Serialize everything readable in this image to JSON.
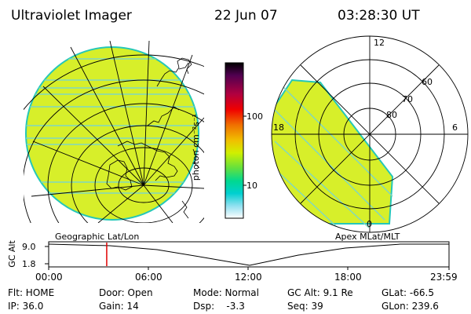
{
  "header": {
    "title": "Ultraviolet Imager",
    "date": "22 Jun 07",
    "time": "03:28:30 UT"
  },
  "left_panel": {
    "caption": "Geographic Lat/Lon",
    "icon": "globe-icon"
  },
  "right_panel": {
    "caption": "Apex MLat/MLT",
    "mlt_labels": [
      "12",
      "18",
      "6",
      "0"
    ],
    "mlat_labels": [
      "60",
      "70",
      "80"
    ]
  },
  "colorbar": {
    "unit_label": "photon cm⁻²s⁻¹",
    "tick_labels": [
      "100",
      "10"
    ],
    "scale": "log",
    "colors": [
      "#000000",
      "#400040",
      "#800060",
      "#c00030",
      "#f00000",
      "#f06000",
      "#f0a000",
      "#f0e000",
      "#c0f000",
      "#60e040",
      "#00e090",
      "#00d0d0",
      "#80e0f0",
      "#d0f0f8",
      "#ffffff"
    ]
  },
  "timeline": {
    "y_label": "GC Alt",
    "y_ticks": [
      "9.0",
      "1.8"
    ],
    "x_ticks": [
      "00:00",
      "06:00",
      "12:00",
      "18:00",
      "23:59"
    ],
    "marker_time": "03:28",
    "marker_fraction": 0.145,
    "marker_color": "#e00000"
  },
  "status": {
    "row1": [
      {
        "key": "flt",
        "text": "Flt: HOME"
      },
      {
        "key": "door",
        "text": "Door: Open"
      },
      {
        "key": "mode",
        "text": "Mode: Normal"
      },
      {
        "key": "gcalt",
        "text": "GC Alt: 9.1 Re"
      },
      {
        "key": "glat",
        "text": "GLat: -66.5"
      }
    ],
    "row2": [
      {
        "key": "ip",
        "text": "IP: 36.0"
      },
      {
        "key": "gain",
        "text": "Gain: 14"
      },
      {
        "key": "dsp",
        "text": "Dsp:    -3.3"
      },
      {
        "key": "seq",
        "text": "Seq: 39"
      },
      {
        "key": "glon",
        "text": "GLon: 239.6"
      }
    ]
  },
  "colors": {
    "image_fill": "#d7ef2a",
    "image_edge": "#25c7b8",
    "stripe": "#7fd7c2",
    "grid": "#000000"
  }
}
